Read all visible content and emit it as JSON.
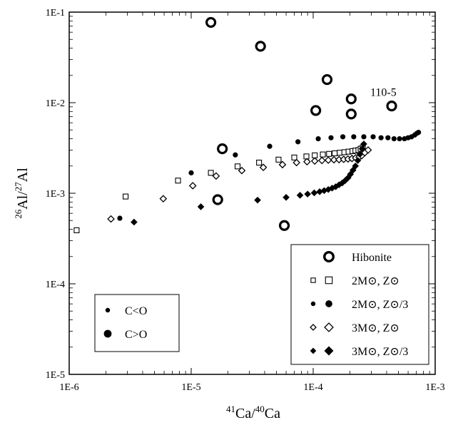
{
  "chart_data": {
    "type": "scatter",
    "title": "",
    "xscale": "log",
    "yscale": "log",
    "xlim": [
      1e-06,
      0.001
    ],
    "ylim": [
      1e-05,
      0.1
    ],
    "xticks": [
      "1E-6",
      "1E-5",
      "1E-4",
      "1E-3"
    ],
    "yticks": [
      "1E-5",
      "1E-4",
      "1E-3",
      "1E-2",
      "1E-1"
    ],
    "xlabel": {
      "sup1": "41",
      "base1": "Ca/",
      "sup2": "40",
      "base2": "Ca"
    },
    "ylabel": {
      "sup1": "26",
      "base1": "Al/",
      "sup2": "27",
      "base2": "Al"
    },
    "grid": false,
    "legend_position": "bottom-right",
    "annotation": {
      "text": "110-5",
      "x": 0.00044,
      "y": 0.0092
    },
    "series": [
      {
        "name": "Hibonite",
        "marker": "ring",
        "points": [
          [
            1.45e-05,
            0.077
          ],
          [
            3.7e-05,
            0.042
          ],
          [
            0.00013,
            0.018
          ],
          [
            0.000105,
            0.0082
          ],
          [
            0.000205,
            0.011
          ],
          [
            0.000205,
            0.0075
          ],
          [
            0.00044,
            0.0092
          ],
          [
            1.8e-05,
            0.0031
          ],
          [
            1.65e-05,
            0.00085
          ],
          [
            5.8e-05,
            0.00044
          ]
        ]
      },
      {
        "name": "2M⊙, Z⊙",
        "marker": "open-square",
        "points": [
          [
            1.15e-06,
            0.00039
          ],
          [
            2.9e-06,
            0.00092
          ],
          [
            7.8e-06,
            0.00138
          ],
          [
            1.45e-05,
            0.00168
          ],
          [
            2.4e-05,
            0.00198
          ],
          [
            3.6e-05,
            0.00218
          ],
          [
            5.2e-05,
            0.00235
          ],
          [
            7e-05,
            0.00248
          ],
          [
            8.8e-05,
            0.00255
          ],
          [
            0.000103,
            0.00262
          ],
          [
            0.00012,
            0.00268
          ],
          [
            0.000135,
            0.00272
          ],
          [
            0.00015,
            0.00276
          ],
          [
            0.000165,
            0.0028
          ],
          [
            0.00018,
            0.00284
          ],
          [
            0.000195,
            0.00288
          ],
          [
            0.00021,
            0.00292
          ],
          [
            0.000222,
            0.00296
          ],
          [
            0.000235,
            0.003
          ],
          [
            0.000245,
            0.0031
          ],
          [
            0.000255,
            0.0032
          ]
        ]
      },
      {
        "name": "2M⊙, Z⊙/3",
        "marker": "filled-circle",
        "points": [
          [
            2.6e-06,
            0.00053
          ],
          [
            1e-05,
            0.00168
          ],
          [
            2.3e-05,
            0.00265
          ],
          [
            4.4e-05,
            0.0033
          ],
          [
            7.5e-05,
            0.0037
          ],
          [
            0.00011,
            0.004
          ],
          [
            0.00014,
            0.0041
          ],
          [
            0.000175,
            0.0042
          ],
          [
            0.000215,
            0.0042
          ],
          [
            0.00026,
            0.0042
          ],
          [
            0.00031,
            0.0042
          ],
          [
            0.00036,
            0.0041
          ],
          [
            0.00041,
            0.0041
          ],
          [
            0.00046,
            0.004
          ],
          [
            0.00051,
            0.004
          ],
          [
            0.00056,
            0.004
          ],
          [
            0.0006,
            0.0041
          ],
          [
            0.00064,
            0.0042
          ],
          [
            0.00068,
            0.0044
          ],
          [
            0.00071,
            0.0046
          ],
          [
            0.00073,
            0.0047
          ]
        ]
      },
      {
        "name": "3M⊙, Z⊙",
        "marker": "open-diamond",
        "points": [
          [
            2.2e-06,
            0.00052
          ],
          [
            5.9e-06,
            0.00087
          ],
          [
            1.03e-05,
            0.00121
          ],
          [
            1.6e-05,
            0.00155
          ],
          [
            2.6e-05,
            0.00178
          ],
          [
            3.9e-05,
            0.00193
          ],
          [
            5.6e-05,
            0.00207
          ],
          [
            7.3e-05,
            0.00218
          ],
          [
            8.9e-05,
            0.00223
          ],
          [
            0.000103,
            0.00227
          ],
          [
            0.000118,
            0.0023
          ],
          [
            0.000133,
            0.00232
          ],
          [
            0.000148,
            0.00234
          ],
          [
            0.000163,
            0.00235
          ],
          [
            0.000178,
            0.00237
          ],
          [
            0.000193,
            0.00239
          ],
          [
            0.000208,
            0.00242
          ],
          [
            0.000223,
            0.00246
          ],
          [
            0.000238,
            0.0025
          ],
          [
            0.00025,
            0.0026
          ],
          [
            0.000265,
            0.0028
          ],
          [
            0.000282,
            0.003
          ]
        ]
      },
      {
        "name": "3M⊙, Z⊙/3",
        "marker": "filled-diamond",
        "points": [
          [
            3.4e-06,
            0.00048
          ],
          [
            1.2e-05,
            0.00071
          ],
          [
            3.5e-05,
            0.00084
          ],
          [
            6e-05,
            0.0009
          ],
          [
            7.8e-05,
            0.00095
          ],
          [
            9e-05,
            0.00098
          ],
          [
            0.000102,
            0.00101
          ],
          [
            0.000113,
            0.00104
          ],
          [
            0.000123,
            0.00107
          ],
          [
            0.000133,
            0.0011
          ],
          [
            0.000143,
            0.00114
          ],
          [
            0.000153,
            0.00118
          ],
          [
            0.000163,
            0.00124
          ],
          [
            0.000173,
            0.0013
          ],
          [
            0.000183,
            0.00138
          ],
          [
            0.000193,
            0.00148
          ],
          [
            0.000202,
            0.00162
          ],
          [
            0.000212,
            0.0018
          ],
          [
            0.000222,
            0.002
          ],
          [
            0.000232,
            0.0023
          ],
          [
            0.000242,
            0.0027
          ],
          [
            0.000252,
            0.0031
          ],
          [
            0.00026,
            0.0035
          ]
        ]
      }
    ],
    "legend_right": [
      {
        "marker": "ring",
        "label": "Hibonite",
        "seq": "single"
      },
      {
        "marker": "open-square",
        "label": "2M⊙, Z⊙",
        "seq": "pair"
      },
      {
        "marker": "filled-circle",
        "label": "2M⊙, Z⊙/3",
        "seq": "pair"
      },
      {
        "marker": "open-diamond",
        "label": "3M⊙, Z⊙",
        "seq": "pair"
      },
      {
        "marker": "filled-diamond",
        "label": "3M⊙, Z⊙/3",
        "seq": "pair"
      }
    ],
    "legend_left": [
      {
        "marker": "filled-circle",
        "label": "C<O",
        "size": "small"
      },
      {
        "marker": "filled-circle",
        "label": "C>O",
        "size": "large"
      }
    ]
  }
}
